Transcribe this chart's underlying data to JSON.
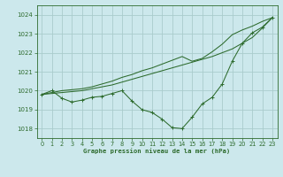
{
  "title": "Graphe pression niveau de la mer (hPa)",
  "bg_color": "#cce8ec",
  "grid_color": "#aacccc",
  "line_color": "#2d6b2d",
  "xlim": [
    -0.5,
    23.5
  ],
  "ylim": [
    1017.5,
    1024.5
  ],
  "xticks": [
    0,
    1,
    2,
    3,
    4,
    5,
    6,
    7,
    8,
    9,
    10,
    11,
    12,
    13,
    14,
    15,
    16,
    17,
    18,
    19,
    20,
    21,
    22,
    23
  ],
  "yticks": [
    1018,
    1019,
    1020,
    1021,
    1022,
    1023,
    1024
  ],
  "series_marked": [
    1019.8,
    1020.0,
    1019.6,
    1019.4,
    1019.5,
    1019.65,
    1019.7,
    1019.85,
    1020.0,
    1019.45,
    1019.0,
    1018.85,
    1018.5,
    1018.05,
    1018.0,
    1018.6,
    1019.3,
    1019.65,
    1020.35,
    1021.55,
    1022.5,
    1023.05,
    1023.35,
    1023.85
  ],
  "series_line1": [
    1019.8,
    1019.85,
    1019.9,
    1019.95,
    1020.0,
    1020.1,
    1020.2,
    1020.3,
    1020.45,
    1020.6,
    1020.75,
    1020.9,
    1021.05,
    1021.2,
    1021.35,
    1021.5,
    1021.65,
    1021.8,
    1022.0,
    1022.2,
    1022.5,
    1022.8,
    1023.3,
    1023.85
  ],
  "series_line2": [
    1019.8,
    1019.9,
    1020.0,
    1020.05,
    1020.1,
    1020.2,
    1020.35,
    1020.5,
    1020.7,
    1020.85,
    1021.05,
    1021.2,
    1021.4,
    1021.6,
    1021.8,
    1021.55,
    1021.7,
    1022.05,
    1022.45,
    1022.95,
    1023.2,
    1023.4,
    1023.65,
    1023.85
  ]
}
